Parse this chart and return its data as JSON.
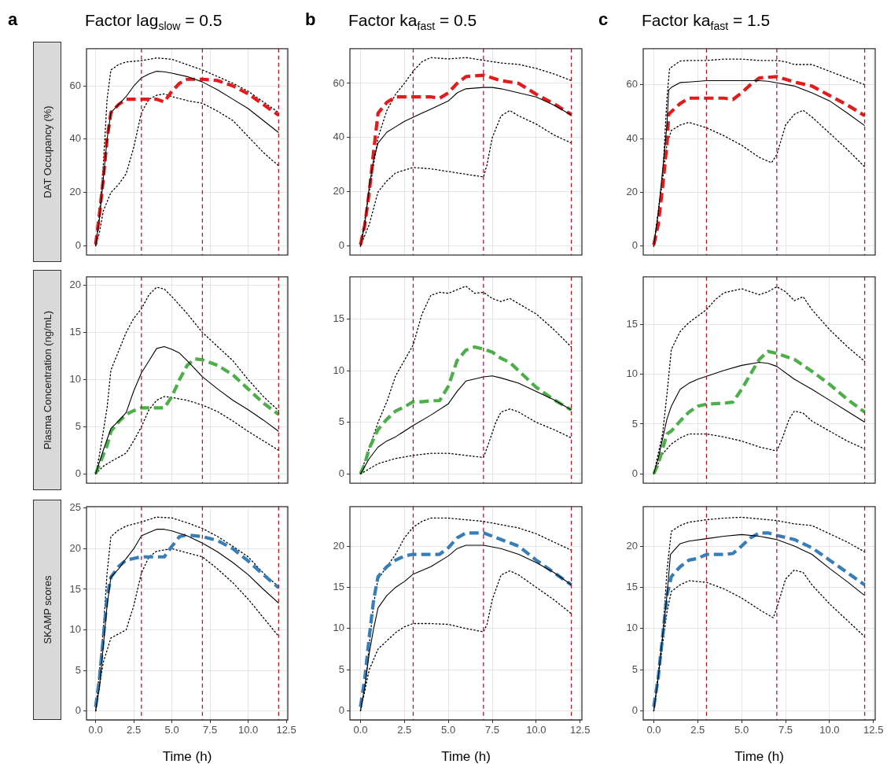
{
  "chart_data": [
    {
      "type": "line",
      "title": "Factor lag$_{slow}$ = 0.5",
      "ylabel": "DAT Occupancy (%)",
      "annotations": [
        "a"
      ],
      "xlim": [
        -0.6,
        12.6
      ],
      "xticks": [
        0,
        2.5,
        5,
        7.5,
        10,
        12.5
      ],
      "ylim": [
        -3.5,
        74
      ],
      "yticks": [
        0,
        20,
        40,
        60
      ],
      "grid": true,
      "tick_labels": "y",
      "ref_lines": [
        {
          "axis": "x",
          "value": 3,
          "color": "#b2182b",
          "line_style": "dashed"
        },
        {
          "axis": "x",
          "value": 7,
          "color": "#b2182b",
          "line_style": "dashed"
        },
        {
          "axis": "x",
          "value": 12,
          "color": "#b2182b",
          "line_style": "dashed"
        }
      ],
      "series": [
        {
          "color": "#000000",
          "line_style": "dotted",
          "x": [
            0,
            0.25,
            0.5,
            0.75,
            1,
            1.5,
            2,
            3,
            4,
            5,
            6,
            7,
            8,
            9,
            10,
            11,
            12
          ],
          "values": [
            0,
            12,
            30,
            55,
            66,
            68,
            69,
            69.5,
            70.5,
            70,
            68,
            66,
            63.5,
            61,
            58,
            54,
            50
          ]
        },
        {
          "color": "#000000",
          "line_style": "dotted",
          "x": [
            0,
            0.25,
            0.5,
            1,
            1.5,
            2,
            2.5,
            3,
            3.5,
            4,
            4.5,
            5,
            6,
            7,
            8,
            9,
            10,
            11,
            12
          ],
          "values": [
            0,
            5,
            13,
            20,
            23,
            27,
            37,
            50,
            55,
            56.5,
            57,
            56,
            54.5,
            53.5,
            50.5,
            47,
            41,
            35,
            30
          ]
        },
        {
          "color": "#e41a1c",
          "line_style": "dashed",
          "x": [
            0,
            0.25,
            0.5,
            0.75,
            1,
            1.5,
            2,
            2.5,
            3,
            3.5,
            4,
            4.5,
            5,
            5.5,
            6,
            7,
            8,
            9,
            10,
            11,
            12
          ],
          "values": [
            0.5,
            12,
            25,
            40,
            50,
            53,
            55,
            55,
            55,
            55,
            55,
            54,
            58,
            61,
            62.5,
            62.5,
            62,
            60,
            57,
            53,
            49
          ]
        },
        {
          "color": "#000000",
          "line_style": "solid",
          "x": [
            0,
            0.25,
            0.5,
            0.75,
            1,
            1.5,
            2,
            2.5,
            3,
            3.5,
            4,
            4.5,
            5,
            6,
            7,
            8,
            9,
            10,
            11,
            12
          ],
          "values": [
            0,
            10,
            25,
            40,
            50,
            53,
            56,
            60,
            63,
            64.5,
            65.5,
            65.3,
            64.8,
            63.5,
            61.5,
            58.5,
            55,
            51.5,
            47,
            42.5
          ]
        }
      ]
    },
    {
      "type": "line",
      "title": "Factor ka$_{fast}$ = 0.5",
      "annotations": [
        "b"
      ],
      "xlim": [
        -0.6,
        12.6
      ],
      "xticks": [
        0,
        2.5,
        5,
        7.5,
        10,
        12.5
      ],
      "ylim": [
        -3.3,
        72.8
      ],
      "yticks": [
        0,
        20,
        40,
        60
      ],
      "grid": true,
      "tick_labels": "y",
      "ref_lines": [
        {
          "axis": "x",
          "value": 3,
          "color": "#b2182b",
          "line_style": "dashed"
        },
        {
          "axis": "x",
          "value": 7,
          "color": "#b2182b",
          "line_style": "dashed"
        },
        {
          "axis": "x",
          "value": 12,
          "color": "#b2182b",
          "line_style": "dashed"
        }
      ],
      "series": [
        {
          "color": "#000000",
          "line_style": "dotted",
          "x": [
            0,
            0.5,
            1,
            1.5,
            2,
            2.5,
            3,
            3.5,
            4,
            5,
            6,
            7,
            8,
            9,
            10,
            11,
            12
          ],
          "values": [
            0,
            20,
            40,
            50,
            56,
            60,
            64.5,
            68,
            69.5,
            69,
            69.5,
            68.5,
            67.5,
            67,
            65.5,
            63.5,
            61
          ]
        },
        {
          "color": "#000000",
          "line_style": "dotted",
          "x": [
            0,
            0.5,
            1,
            1.5,
            2,
            3,
            4,
            5,
            6,
            7,
            7.2,
            7.5,
            8,
            8.5,
            9,
            10,
            11,
            12
          ],
          "values": [
            0,
            8,
            20,
            24,
            27,
            29,
            28.5,
            27.5,
            26.5,
            25.5,
            30,
            40,
            48,
            50,
            48,
            45,
            41,
            38
          ]
        },
        {
          "color": "#e41a1c",
          "line_style": "dashed",
          "x": [
            0,
            0.25,
            0.5,
            0.75,
            1,
            1.5,
            2,
            2.5,
            3,
            3.5,
            4,
            4.5,
            5,
            5.5,
            6,
            7,
            7.5,
            8,
            9,
            10,
            11,
            12
          ],
          "values": [
            0.5,
            8,
            20,
            35,
            49,
            53,
            55,
            55,
            55,
            55,
            55,
            54.5,
            56.5,
            60,
            62.5,
            63,
            62,
            61,
            60,
            56,
            52.5,
            48.5
          ]
        },
        {
          "color": "#000000",
          "line_style": "solid",
          "x": [
            0,
            0.25,
            0.5,
            0.75,
            1,
            1.5,
            2,
            2.5,
            3,
            3.5,
            4,
            4.5,
            5,
            5.5,
            6,
            7,
            7.5,
            8,
            9,
            10,
            11,
            12
          ],
          "values": [
            0,
            8,
            22,
            32,
            38,
            42,
            44,
            46,
            47.5,
            49,
            50.5,
            52,
            53.5,
            56.5,
            58,
            58.5,
            58.5,
            58,
            56.5,
            55,
            52,
            48.3
          ]
        }
      ]
    },
    {
      "type": "line",
      "title": "Factor ka$_{fast}$ = 1.5",
      "annotations": [
        "c"
      ],
      "xlim": [
        -0.6,
        12.6
      ],
      "xticks": [
        0,
        2.5,
        5,
        7.5,
        10,
        12.5
      ],
      "ylim": [
        -3.3,
        73.4
      ],
      "yticks": [
        0,
        20,
        40,
        60
      ],
      "grid": true,
      "tick_labels": "y",
      "ref_lines": [
        {
          "axis": "x",
          "value": 3,
          "color": "#b2182b",
          "line_style": "dashed"
        },
        {
          "axis": "x",
          "value": 7,
          "color": "#b2182b",
          "line_style": "dashed"
        },
        {
          "axis": "x",
          "value": 12,
          "color": "#b2182b",
          "line_style": "dashed"
        }
      ],
      "series": [
        {
          "color": "#000000",
          "line_style": "dotted",
          "x": [
            0,
            0.5,
            0.75,
            0.9,
            1.5,
            2,
            3,
            4,
            5,
            6,
            7,
            7.5,
            8,
            9,
            10,
            11,
            12
          ],
          "values": [
            0,
            25,
            55,
            66,
            68.8,
            69,
            69,
            69.5,
            69.5,
            69,
            69,
            68.5,
            67.5,
            67.5,
            65,
            62.5,
            60
          ]
        },
        {
          "color": "#000000",
          "line_style": "dotted",
          "x": [
            0,
            0.5,
            0.75,
            1,
            1.5,
            2,
            3,
            4,
            5,
            6,
            6.7,
            7,
            7.5,
            8,
            8.5,
            9,
            10,
            11,
            12
          ],
          "values": [
            0,
            25,
            38,
            43,
            45,
            46,
            44,
            41,
            37.5,
            33,
            31,
            34,
            45,
            49,
            50.5,
            48,
            42,
            36,
            29.5
          ]
        },
        {
          "color": "#e41a1c",
          "line_style": "dashed",
          "x": [
            0,
            0.25,
            0.5,
            0.75,
            0.85,
            1,
            1.5,
            2,
            3,
            4,
            4.5,
            5,
            5.5,
            6,
            7,
            7.5,
            8,
            9,
            10,
            11,
            12
          ],
          "values": [
            0.5,
            8,
            22,
            38,
            49,
            50,
            53,
            55,
            55,
            55,
            54.5,
            57,
            60,
            62.5,
            63,
            62,
            61,
            59.5,
            56,
            52.5,
            48.5
          ]
        },
        {
          "color": "#000000",
          "line_style": "solid",
          "x": [
            0,
            0.25,
            0.5,
            0.75,
            0.85,
            1,
            1.5,
            2,
            3,
            4,
            5,
            6,
            6.5,
            7,
            8,
            9,
            10,
            11,
            12
          ],
          "values": [
            0,
            12,
            28,
            45,
            58,
            59,
            60.8,
            61,
            61.5,
            61.5,
            61.5,
            61.5,
            61.3,
            60.7,
            59.5,
            57,
            54,
            49.5,
            44.8
          ]
        }
      ]
    },
    {
      "type": "line",
      "ylabel": "Plasma Concentration (ng/mL)",
      "xlim": [
        -0.6,
        12.6
      ],
      "xticks": [
        0,
        2.5,
        5,
        7.5,
        10,
        12.5
      ],
      "ylim": [
        -1,
        20.9
      ],
      "yticks": [
        0,
        5,
        10,
        15,
        20
      ],
      "grid": true,
      "tick_labels": "y",
      "ref_lines": [
        {
          "axis": "x",
          "value": 3,
          "color": "#b2182b",
          "line_style": "dashed"
        },
        {
          "axis": "x",
          "value": 7,
          "color": "#b2182b",
          "line_style": "dashed"
        },
        {
          "axis": "x",
          "value": 12,
          "color": "#b2182b",
          "line_style": "dashed"
        }
      ],
      "series": [
        {
          "color": "#000000",
          "line_style": "dotted",
          "x": [
            0,
            0.25,
            0.5,
            0.75,
            1,
            1.5,
            2,
            2.5,
            3,
            3.5,
            4,
            4.5,
            5,
            6,
            7,
            8,
            9,
            10,
            11,
            12
          ],
          "values": [
            0,
            2,
            4.5,
            7,
            11,
            13,
            15,
            16.5,
            17.5,
            19,
            19.8,
            19.6,
            18.8,
            17,
            15,
            13.5,
            12,
            10,
            8.2,
            6.7
          ]
        },
        {
          "color": "#000000",
          "line_style": "dotted",
          "x": [
            0,
            0.5,
            1,
            2,
            2.5,
            3,
            3.5,
            4,
            4.5,
            5,
            6,
            7,
            8,
            9,
            10,
            11,
            12
          ],
          "values": [
            0,
            0.8,
            1.3,
            2.2,
            3.5,
            5,
            6.8,
            7.8,
            8.2,
            8.1,
            7.8,
            7.3,
            6.6,
            5.6,
            4.5,
            3.5,
            2.5
          ]
        },
        {
          "color": "#4daf4a",
          "line_style": "dashed",
          "x": [
            0,
            0.25,
            0.75,
            1,
            1.5,
            2,
            2.5,
            3,
            3.5,
            4,
            4.5,
            5,
            5.5,
            6,
            6.5,
            7,
            7.5,
            8,
            9,
            10,
            11,
            12
          ],
          "values": [
            0,
            1,
            3,
            4.5,
            5.5,
            6.3,
            6.7,
            7,
            7,
            7,
            7,
            8.2,
            10,
            11.5,
            12.2,
            12.1,
            11.8,
            11.5,
            10.5,
            9,
            7.5,
            6.3
          ]
        },
        {
          "color": "#000000",
          "line_style": "solid",
          "x": [
            0,
            0.5,
            1,
            1.5,
            2,
            2.5,
            3,
            3.5,
            4,
            4.5,
            5,
            5.5,
            6,
            7,
            8,
            9,
            10,
            11,
            12
          ],
          "values": [
            0,
            2.5,
            4.8,
            5.6,
            6.5,
            8.8,
            10.7,
            12,
            13.3,
            13.5,
            13.2,
            12.8,
            12,
            10.3,
            9,
            7.8,
            6.8,
            5.7,
            4.5
          ]
        }
      ]
    },
    {
      "type": "line",
      "xlim": [
        -0.6,
        12.6
      ],
      "xticks": [
        0,
        2.5,
        5,
        7.5,
        10,
        12.5
      ],
      "ylim": [
        -0.9,
        19.1
      ],
      "yticks": [
        0,
        5,
        10,
        15
      ],
      "grid": true,
      "tick_labels": "y",
      "ref_lines": [
        {
          "axis": "x",
          "value": 3,
          "color": "#b2182b",
          "line_style": "dashed"
        },
        {
          "axis": "x",
          "value": 7,
          "color": "#b2182b",
          "line_style": "dashed"
        },
        {
          "axis": "x",
          "value": 12,
          "color": "#b2182b",
          "line_style": "dashed"
        }
      ],
      "series": [
        {
          "color": "#000000",
          "line_style": "dotted",
          "x": [
            0,
            0.5,
            1,
            1.5,
            2,
            2.5,
            3,
            3.5,
            4,
            4.5,
            5,
            6,
            6.5,
            7,
            7.5,
            8,
            8.5,
            9,
            10,
            11,
            12
          ],
          "values": [
            0,
            2.5,
            5,
            7,
            9.5,
            11,
            12.5,
            15.5,
            17.3,
            17.6,
            17.5,
            18.2,
            17.5,
            17.6,
            17,
            16.7,
            17,
            16.5,
            15.5,
            14,
            12.3
          ]
        },
        {
          "color": "#000000",
          "line_style": "dotted",
          "x": [
            0,
            1,
            2,
            3,
            4,
            5,
            6,
            7,
            7.3,
            7.7,
            8,
            8.5,
            9,
            10,
            11,
            12
          ],
          "values": [
            0,
            1,
            1.5,
            1.8,
            2,
            2,
            1.8,
            1.6,
            3,
            5,
            6,
            6.3,
            6,
            5,
            4.3,
            3.5
          ]
        },
        {
          "color": "#4daf4a",
          "line_style": "dashed",
          "x": [
            0,
            0.25,
            0.5,
            1,
            1.5,
            2,
            2.5,
            3,
            3.5,
            4,
            4.5,
            5,
            5.5,
            6,
            6.5,
            7,
            7.5,
            8,
            8.5,
            9,
            10,
            11,
            12
          ],
          "values": [
            0,
            1,
            2.5,
            4.3,
            5.3,
            6.1,
            6.5,
            7,
            7,
            7.1,
            7.1,
            8.5,
            11,
            12,
            12.3,
            12.1,
            11.8,
            11.2,
            10.8,
            10,
            8.4,
            7.2,
            6.2
          ]
        },
        {
          "color": "#000000",
          "line_style": "solid",
          "x": [
            0,
            0.5,
            1,
            1.5,
            2,
            3,
            4,
            5,
            5.5,
            6,
            7,
            7.5,
            8,
            9,
            10,
            11,
            12
          ],
          "values": [
            0,
            1.5,
            2.6,
            3.2,
            3.6,
            4.7,
            5.7,
            6.8,
            8,
            9,
            9.4,
            9.5,
            9.3,
            8.8,
            8,
            7.2,
            6.2
          ]
        }
      ]
    },
    {
      "type": "line",
      "xlim": [
        -0.6,
        12.6
      ],
      "xticks": [
        0,
        2.5,
        5,
        7.5,
        10,
        12.5
      ],
      "ylim": [
        -0.95,
        19.8
      ],
      "yticks": [
        0,
        5,
        10,
        15
      ],
      "grid": true,
      "tick_labels": "y",
      "ref_lines": [
        {
          "axis": "x",
          "value": 3,
          "color": "#b2182b",
          "line_style": "dashed"
        },
        {
          "axis": "x",
          "value": 7,
          "color": "#b2182b",
          "line_style": "dashed"
        },
        {
          "axis": "x",
          "value": 12,
          "color": "#b2182b",
          "line_style": "dashed"
        }
      ],
      "series": [
        {
          "color": "#000000",
          "line_style": "dotted",
          "x": [
            0,
            0.5,
            0.75,
            1,
            1.5,
            2,
            3,
            3.5,
            4,
            5,
            6,
            6.5,
            7,
            7.5,
            8,
            8.5,
            9,
            10,
            11,
            12
          ],
          "values": [
            0,
            4,
            8,
            12.5,
            14.3,
            15.2,
            16.5,
            17.5,
            18.2,
            18.6,
            18,
            18.3,
            18.8,
            18.3,
            17.4,
            17.8,
            16.5,
            14.5,
            12.8,
            11.3
          ]
        },
        {
          "color": "#000000",
          "line_style": "dotted",
          "x": [
            0,
            0.5,
            1,
            1.5,
            2,
            3,
            4,
            5,
            6,
            7,
            7.3,
            7.7,
            8,
            8.5,
            9,
            10,
            11,
            12
          ],
          "values": [
            0,
            2,
            3,
            3.6,
            4,
            4,
            3.7,
            3.3,
            2.7,
            2.3,
            3.5,
            5.5,
            6.3,
            6.1,
            5.3,
            4.3,
            3.3,
            2.5
          ]
        },
        {
          "color": "#4daf4a",
          "line_style": "dashed",
          "x": [
            0,
            0.25,
            0.5,
            0.75,
            1,
            1.5,
            2,
            2.5,
            3,
            4,
            4.5,
            5,
            5.5,
            6,
            6.5,
            7,
            7.5,
            8,
            9,
            10,
            11,
            12
          ],
          "values": [
            0,
            1,
            2.5,
            4,
            4.3,
            5.3,
            6.2,
            6.8,
            7,
            7.1,
            7.2,
            8.5,
            10,
            11.5,
            12.3,
            12.1,
            11.8,
            11.5,
            10.3,
            9,
            7.5,
            6.2
          ]
        },
        {
          "color": "#000000",
          "line_style": "solid",
          "x": [
            0,
            0.25,
            0.5,
            0.75,
            1,
            1.5,
            2,
            2.5,
            3,
            4,
            5,
            6,
            6.5,
            7,
            8,
            9,
            10,
            11,
            12
          ],
          "values": [
            0,
            1.5,
            3.5,
            5.5,
            6.8,
            8.5,
            9.1,
            9.5,
            9.8,
            10.4,
            10.9,
            11.2,
            11.1,
            10.8,
            9.5,
            8.5,
            7.4,
            6.3,
            5.2
          ]
        }
      ]
    },
    {
      "type": "line",
      "ylabel": "SKAMP scores",
      "xlabel": "Time (h)",
      "xlim": [
        -0.6,
        12.6
      ],
      "xticks": [
        {
          "value": 0,
          "label": "0.0"
        },
        {
          "value": 2.5,
          "label": "2.5"
        },
        {
          "value": 5,
          "label": "5.0"
        },
        {
          "value": 7.5,
          "label": "7.5"
        },
        {
          "value": 10,
          "label": "10.0"
        },
        {
          "value": 12.5,
          "label": "12.5"
        }
      ],
      "ylim": [
        -1.1,
        25.2
      ],
      "yticks": [
        0,
        5,
        10,
        15,
        20,
        25
      ],
      "grid": true,
      "ref_lines": [
        {
          "axis": "x",
          "value": 3,
          "color": "#b2182b",
          "line_style": "dashed"
        },
        {
          "axis": "x",
          "value": 7,
          "color": "#b2182b",
          "line_style": "dashed"
        },
        {
          "axis": "x",
          "value": 12,
          "color": "#b2182b",
          "line_style": "dashed"
        }
      ],
      "series": [
        {
          "color": "#000000",
          "line_style": "dotted",
          "x": [
            0,
            0.5,
            0.75,
            1,
            1.5,
            2,
            3,
            4,
            5,
            6,
            7,
            8,
            9,
            10,
            11,
            12
          ],
          "values": [
            0,
            10,
            17,
            21.5,
            22.3,
            22.8,
            23.3,
            23.9,
            23.8,
            23.2,
            22.5,
            21.5,
            20.3,
            19,
            17,
            15.3
          ]
        },
        {
          "color": "#000000",
          "line_style": "dotted",
          "x": [
            0,
            0.5,
            1,
            2,
            2.5,
            3,
            3.5,
            4,
            5,
            6,
            7,
            8,
            9,
            10,
            11,
            12
          ],
          "values": [
            0,
            6,
            9,
            10,
            13,
            17,
            19,
            19.7,
            20,
            19.5,
            19,
            17.5,
            15.8,
            13.8,
            11.5,
            9.2
          ]
        },
        {
          "color": "#377eb8",
          "line_style": "dashed",
          "x": [
            0,
            0.25,
            0.5,
            0.75,
            1,
            1.5,
            2,
            2.5,
            3,
            3.5,
            4,
            4.5,
            5,
            5.5,
            6,
            7,
            8,
            9,
            10,
            11,
            12
          ],
          "values": [
            0.5,
            4,
            9,
            14,
            16.5,
            17.8,
            18.6,
            18.8,
            19,
            19,
            19,
            19,
            20.3,
            21.5,
            21.7,
            21.5,
            21,
            20,
            18.5,
            16.8,
            15.2
          ]
        },
        {
          "color": "#000000",
          "line_style": "solid",
          "x": [
            0,
            0.25,
            0.5,
            0.75,
            1,
            1.5,
            2,
            2.5,
            3,
            3.5,
            4,
            4.5,
            5,
            6,
            7,
            8,
            9,
            10,
            11,
            12
          ],
          "values": [
            0,
            3,
            8,
            13,
            16.5,
            17.5,
            18.8,
            20,
            21.6,
            22,
            22.4,
            22.4,
            22.2,
            21.6,
            20.7,
            19.6,
            18.3,
            16.8,
            15,
            13.3
          ]
        }
      ]
    },
    {
      "type": "line",
      "xlabel": "Time (h)",
      "xlim": [
        -0.6,
        12.6
      ],
      "xticks": [
        {
          "value": 0,
          "label": "0.0"
        },
        {
          "value": 2.5,
          "label": "2.5"
        },
        {
          "value": 5,
          "label": "5.0"
        },
        {
          "value": 7.5,
          "label": "7.5"
        },
        {
          "value": 10,
          "label": "10.0"
        },
        {
          "value": 12.5,
          "label": "12.5"
        }
      ],
      "ylim": [
        -1.1,
        24.8
      ],
      "yticks": [
        0,
        5,
        10,
        15,
        20
      ],
      "grid": true,
      "ref_lines": [
        {
          "axis": "x",
          "value": 3,
          "color": "#b2182b",
          "line_style": "dashed"
        },
        {
          "axis": "x",
          "value": 7,
          "color": "#b2182b",
          "line_style": "dashed"
        },
        {
          "axis": "x",
          "value": 12,
          "color": "#b2182b",
          "line_style": "dashed"
        }
      ],
      "series": [
        {
          "color": "#000000",
          "line_style": "dotted",
          "x": [
            0,
            0.25,
            0.5,
            0.75,
            1,
            1.5,
            2,
            2.5,
            3,
            3.5,
            4,
            5,
            6,
            7,
            8,
            9,
            10,
            11,
            12
          ],
          "values": [
            0,
            2.5,
            8,
            13,
            16,
            17.5,
            19,
            21,
            22.3,
            23,
            23.4,
            23.4,
            23.2,
            23,
            22.6,
            22.2,
            21.5,
            20.5,
            19.5
          ]
        },
        {
          "color": "#000000",
          "line_style": "dotted",
          "x": [
            0,
            0.25,
            0.5,
            1,
            1.5,
            2,
            2.5,
            3,
            4,
            5,
            6,
            7,
            7.2,
            7.5,
            8,
            8.5,
            9,
            10,
            11,
            12
          ],
          "values": [
            0,
            2.5,
            5,
            7.5,
            8.5,
            9.5,
            10.2,
            10.6,
            10.6,
            10.5,
            10,
            9.6,
            10.5,
            13.5,
            16.5,
            17,
            16.5,
            15,
            13.5,
            11.8
          ]
        },
        {
          "color": "#377eb8",
          "line_style": "dashed",
          "x": [
            0,
            0.25,
            0.5,
            0.75,
            1,
            1.5,
            2,
            2.5,
            3,
            4,
            4.5,
            5,
            5.5,
            6,
            7,
            7.5,
            8,
            9,
            10,
            11,
            12
          ],
          "values": [
            0.5,
            4,
            9,
            13.5,
            16.3,
            17.5,
            18.3,
            18.8,
            19,
            19,
            19,
            19.8,
            21,
            21.6,
            21.6,
            21.2,
            20.8,
            20,
            18.3,
            16.8,
            15.3
          ]
        },
        {
          "color": "#000000",
          "line_style": "solid",
          "x": [
            0,
            0.25,
            0.5,
            0.75,
            1,
            1.5,
            2,
            2.5,
            3,
            4,
            5,
            5.5,
            6,
            7,
            8,
            9,
            10,
            11,
            12
          ],
          "values": [
            0,
            3,
            7,
            10,
            12.5,
            14,
            15,
            15.7,
            16.6,
            17.5,
            18.8,
            19.7,
            20.1,
            20.1,
            19.7,
            19,
            18,
            16.8,
            15.3
          ]
        }
      ]
    },
    {
      "type": "line",
      "xlabel": "Time (h)",
      "xlim": [
        -0.6,
        12.6
      ],
      "xticks": [
        {
          "value": 0,
          "label": "0.0"
        },
        {
          "value": 2.5,
          "label": "2.5"
        },
        {
          "value": 5,
          "label": "5.0"
        },
        {
          "value": 7.5,
          "label": "7.5"
        },
        {
          "value": 10,
          "label": "10.0"
        },
        {
          "value": 12.5,
          "label": "12.5"
        }
      ],
      "ylim": [
        -1.1,
        24.8
      ],
      "yticks": [
        0,
        5,
        10,
        15,
        20
      ],
      "grid": true,
      "ref_lines": [
        {
          "axis": "x",
          "value": 3,
          "color": "#b2182b",
          "line_style": "dashed"
        },
        {
          "axis": "x",
          "value": 7,
          "color": "#b2182b",
          "line_style": "dashed"
        },
        {
          "axis": "x",
          "value": 12,
          "color": "#b2182b",
          "line_style": "dashed"
        }
      ],
      "series": [
        {
          "color": "#000000",
          "line_style": "dotted",
          "x": [
            0,
            0.5,
            0.75,
            1,
            1.5,
            2,
            3,
            4,
            5,
            6,
            7,
            8,
            9,
            10,
            11,
            12
          ],
          "values": [
            0,
            9,
            17,
            21.8,
            22.5,
            22.9,
            23.2,
            23.4,
            23.5,
            23.3,
            23.1,
            22.7,
            22.5,
            21.5,
            20.5,
            19.3
          ]
        },
        {
          "color": "#000000",
          "line_style": "dotted",
          "x": [
            0,
            0.5,
            0.75,
            1,
            1.5,
            2,
            3,
            4,
            5,
            6,
            6.8,
            7,
            7.5,
            8,
            8.5,
            9,
            10,
            11,
            12
          ],
          "values": [
            0,
            8,
            12,
            14.5,
            15.3,
            15.8,
            15.6,
            14.8,
            13.7,
            12.3,
            11.3,
            12.5,
            16,
            17.1,
            16.8,
            15.3,
            13,
            11,
            9
          ]
        },
        {
          "color": "#377eb8",
          "line_style": "dashed",
          "x": [
            0,
            0.25,
            0.5,
            0.75,
            1,
            1.5,
            2,
            2.5,
            3,
            4,
            4.5,
            5,
            5.5,
            6,
            6.5,
            7,
            8,
            9,
            10,
            11,
            12
          ],
          "values": [
            0.5,
            4,
            9,
            14,
            16.3,
            17.5,
            18.3,
            18.5,
            19,
            19,
            19.1,
            20,
            21,
            21.6,
            21.6,
            21.3,
            20.8,
            19.8,
            18.3,
            16.8,
            15.3
          ]
        },
        {
          "color": "#000000",
          "line_style": "solid",
          "x": [
            0,
            0.25,
            0.5,
            0.75,
            0.95,
            1.5,
            2,
            3,
            4,
            5,
            6,
            6.5,
            7,
            8,
            9,
            10,
            11,
            12
          ],
          "values": [
            0,
            4,
            9,
            14,
            19,
            20.3,
            20.6,
            20.9,
            21.2,
            21.4,
            21.2,
            21,
            20.8,
            20,
            19,
            17.3,
            15.7,
            14
          ]
        }
      ]
    }
  ]
}
